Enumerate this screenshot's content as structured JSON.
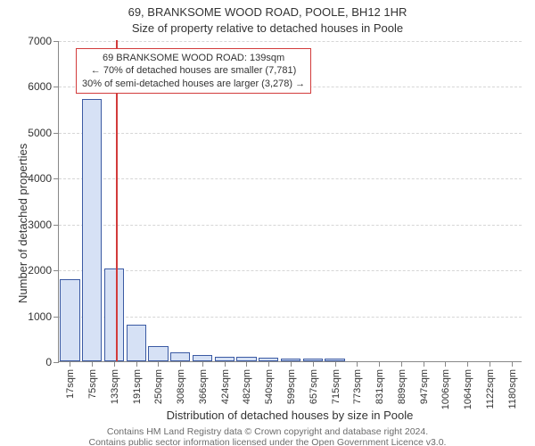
{
  "header": {
    "line1": "69, BRANKSOME WOOD ROAD, POOLE, BH12 1HR",
    "line2": "Size of property relative to detached houses in Poole"
  },
  "chart": {
    "type": "histogram",
    "background_color": "#ffffff",
    "grid_color": "#d6d6d6",
    "axis_color": "#888888",
    "bar_fill": "#d6e1f5",
    "bar_border": "#3b5aa3",
    "bar_width_rel": 0.9,
    "ylabel": "Number of detached properties",
    "xlabel": "Distribution of detached houses by size in Poole",
    "label_fontsize": 13,
    "tick_fontsize": 12,
    "ylim": [
      0,
      7000
    ],
    "yticks": [
      0,
      1000,
      2000,
      3000,
      4000,
      5000,
      6000,
      7000
    ],
    "categories": [
      "17sqm",
      "75sqm",
      "133sqm",
      "191sqm",
      "250sqm",
      "308sqm",
      "366sqm",
      "424sqm",
      "482sqm",
      "540sqm",
      "599sqm",
      "657sqm",
      "715sqm",
      "773sqm",
      "831sqm",
      "889sqm",
      "947sqm",
      "1006sqm",
      "1064sqm",
      "1122sqm",
      "1180sqm"
    ],
    "values": [
      1780,
      5720,
      2020,
      800,
      340,
      200,
      130,
      100,
      90,
      70,
      60,
      55,
      55,
      0,
      0,
      0,
      0,
      0,
      0,
      0,
      0
    ],
    "reference_line": {
      "color": "#d23b3b",
      "width": 2,
      "sqm": 139
    },
    "annotation": {
      "border_color": "#d23b3b",
      "lines": [
        "69 BRANKSOME WOOD ROAD: 139sqm",
        "← 70% of detached houses are smaller (7,781)",
        "30% of semi-detached houses are larger (3,278) →"
      ]
    }
  },
  "footer": {
    "line1": "Contains HM Land Registry data © Crown copyright and database right 2024.",
    "line2": "Contains public sector information licensed under the Open Government Licence v3.0."
  }
}
